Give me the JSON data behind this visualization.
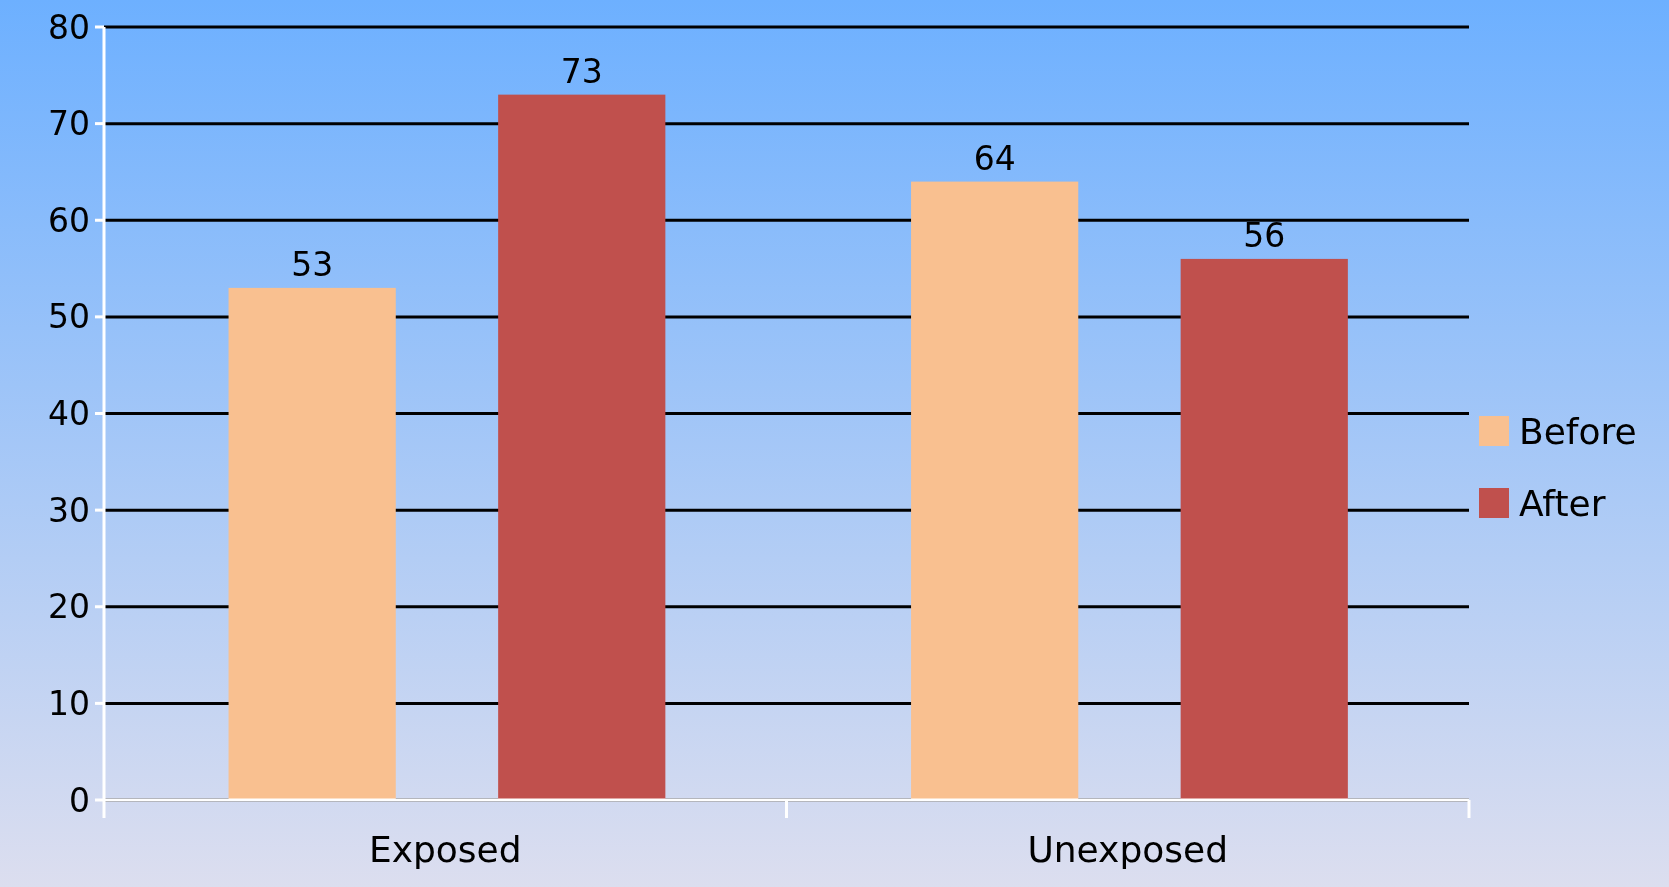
{
  "chart_data": {
    "type": "bar",
    "categories": [
      "Exposed",
      "Unexposed"
    ],
    "series": [
      {
        "name": "Before",
        "color": "#f9c090",
        "values": [
          53,
          64
        ]
      },
      {
        "name": "After",
        "color": "#c0504d",
        "values": [
          73,
          56
        ]
      }
    ],
    "ylim": [
      0,
      80
    ],
    "yticks": [
      0,
      10,
      20,
      30,
      40,
      50,
      60,
      70,
      80
    ],
    "grid": "y",
    "legend": "right",
    "data_labels": true
  }
}
